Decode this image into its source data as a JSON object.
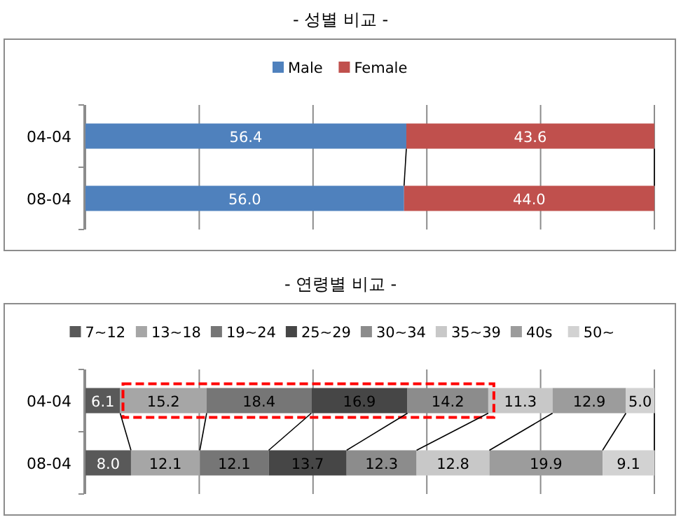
{
  "chart_data": [
    {
      "type": "bar",
      "title": "- 성별 비교 -",
      "orientation": "horizontal",
      "stacked": true,
      "categories": [
        "04-04",
        "08-04"
      ],
      "series": [
        {
          "name": "Male",
          "color": "#4f81bd",
          "values": [
            56.4,
            56.0
          ],
          "value_labels": [
            "56.4",
            "56.0"
          ]
        },
        {
          "name": "Female",
          "color": "#c0504d",
          "values": [
            43.6,
            44.0
          ],
          "value_labels": [
            "43.6",
            "44.0"
          ]
        }
      ],
      "xlim": [
        0,
        100
      ],
      "xticks": [
        {
          "value": 0,
          "label": null
        },
        {
          "value": 20,
          "label": null
        },
        {
          "value": 40,
          "label": null
        },
        {
          "value": 60,
          "label": null
        },
        {
          "value": 80,
          "label": null
        },
        {
          "value": 100,
          "label": null
        }
      ],
      "grid": "x",
      "legend": "top",
      "tick_labels": "y"
    },
    {
      "type": "bar",
      "title": "- 연령별 비교 -",
      "orientation": "horizontal",
      "stacked": true,
      "categories": [
        "04-04",
        "08-04"
      ],
      "series": [
        {
          "name": "7~12",
          "color": "#595959",
          "values": [
            6.1,
            8.0
          ],
          "value_labels": [
            "6.1",
            "8.0"
          ]
        },
        {
          "name": "13~18",
          "color": "#a6a6a6",
          "values": [
            15.2,
            12.1
          ],
          "value_labels": [
            "15.2",
            "12.1"
          ]
        },
        {
          "name": "19~24",
          "color": "#767676",
          "values": [
            18.4,
            12.1
          ],
          "value_labels": [
            "18.4",
            "12.1"
          ]
        },
        {
          "name": "25~29",
          "color": "#464646",
          "values": [
            16.9,
            13.7
          ],
          "value_labels": [
            "16.9",
            "13.7"
          ]
        },
        {
          "name": "30~34",
          "color": "#8c8c8c",
          "values": [
            14.2,
            12.3
          ],
          "value_labels": [
            "14.2",
            "12.3"
          ]
        },
        {
          "name": "35~39",
          "color": "#c8c8c8",
          "values": [
            11.3,
            12.8
          ],
          "value_labels": [
            "11.3",
            "12.8"
          ]
        },
        {
          "name": "40s",
          "color": "#9c9c9c",
          "values": [
            12.9,
            19.9
          ],
          "value_labels": [
            "12.9",
            "19.9"
          ]
        },
        {
          "name": "50~",
          "color": "#d2d2d2",
          "values": [
            5.0,
            9.1
          ],
          "value_labels": [
            "5.0",
            "9.1"
          ]
        }
      ],
      "xlim": [
        0,
        100
      ],
      "xticks": [
        {
          "value": 0,
          "label": null
        },
        {
          "value": 20,
          "label": null
        },
        {
          "value": 40,
          "label": null
        },
        {
          "value": 60,
          "label": null
        },
        {
          "value": 80,
          "label": null
        },
        {
          "value": 100,
          "label": null
        }
      ],
      "grid": "x",
      "legend": "top",
      "tick_labels": "y"
    }
  ]
}
